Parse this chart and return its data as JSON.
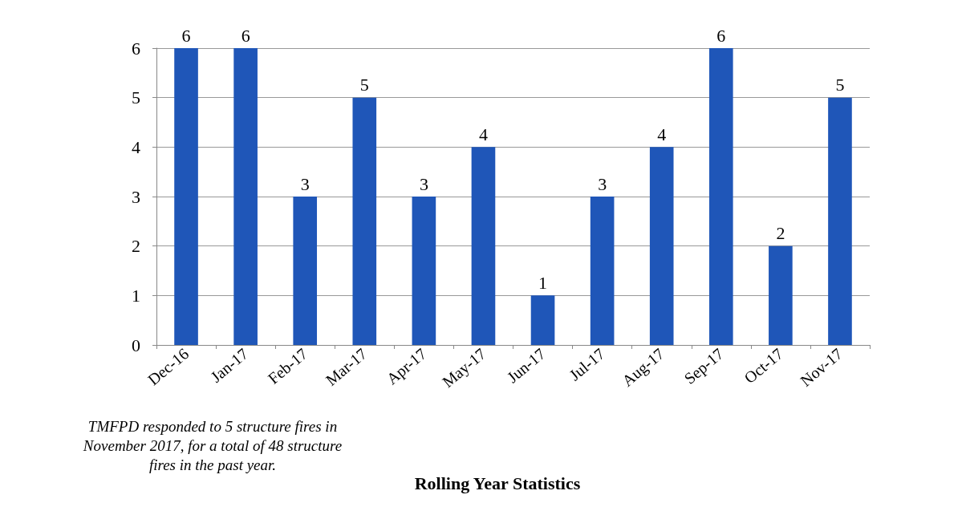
{
  "chart_data": {
    "type": "bar",
    "title": "Rolling Year Statistics",
    "categories": [
      "Dec-16",
      "Jan-17",
      "Feb-17",
      "Mar-17",
      "Apr-17",
      "May-17",
      "Jun-17",
      "Jul-17",
      "Aug-17",
      "Sep-17",
      "Oct-17",
      "Nov-17"
    ],
    "values": [
      6,
      6,
      3,
      5,
      3,
      4,
      1,
      3,
      4,
      6,
      2,
      5
    ],
    "color": "#1f56b8",
    "ylim": [
      0,
      6
    ],
    "yticks": [
      0,
      1,
      2,
      3,
      4,
      5,
      6
    ],
    "grid": "y",
    "data_labels": true,
    "annotations": [
      "TMFPD responded to 5 structure fires in November 2017, for a total of 48 structure fires in the past year."
    ]
  }
}
